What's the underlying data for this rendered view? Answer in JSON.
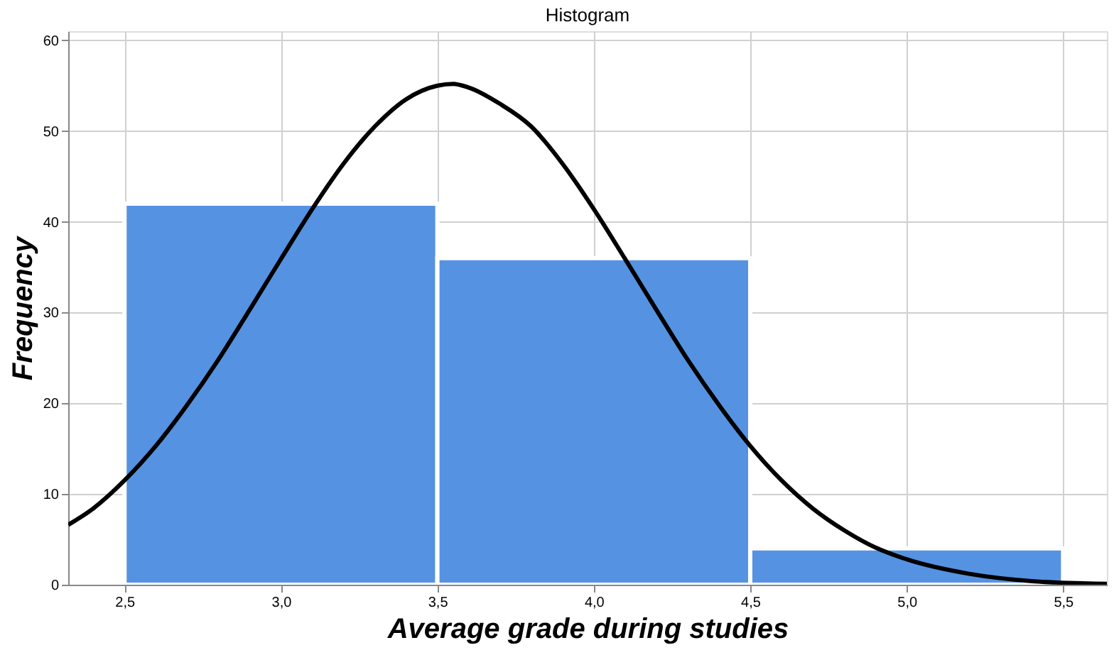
{
  "chart_data": {
    "type": "histogram",
    "title": "Histogram",
    "xlabel": "Average grade during studies",
    "ylabel": "Frequency",
    "bins": [
      2.5,
      3.5,
      4.5,
      5.5
    ],
    "values": [
      42,
      36,
      4
    ],
    "color": "#5592e2",
    "series": [
      {
        "type": "line",
        "color": "#000000",
        "x": [
          2.32,
          2.4,
          2.5,
          2.6,
          2.7,
          2.8,
          2.9,
          3.0,
          3.1,
          3.2,
          3.3,
          3.4,
          3.5,
          3.55,
          3.6,
          3.7,
          3.8,
          3.9,
          4.0,
          4.1,
          4.2,
          4.3,
          4.4,
          4.5,
          4.6,
          4.7,
          4.8,
          4.9,
          5.0,
          5.2,
          5.4,
          5.64
        ],
        "values": [
          6.6,
          8.4,
          11.5,
          15.3,
          19.8,
          24.8,
          30.3,
          35.9,
          41.4,
          46.4,
          50.5,
          53.5,
          55.0,
          55.2,
          54.8,
          53.0,
          50.5,
          46.4,
          41.4,
          35.9,
          30.3,
          24.8,
          19.8,
          15.3,
          11.5,
          8.4,
          6.0,
          4.1,
          2.8,
          1.2,
          0.4,
          0.1
        ]
      }
    ],
    "xlim": [
      2.32,
      5.64
    ],
    "ylim": [
      0,
      61
    ],
    "xticks": [
      {
        "value": 2.5,
        "label": "2,5"
      },
      {
        "value": 3.0,
        "label": "3,0"
      },
      {
        "value": 3.5,
        "label": "3,5"
      },
      {
        "value": 4.0,
        "label": "4,0"
      },
      {
        "value": 4.5,
        "label": "4,5"
      },
      {
        "value": 5.0,
        "label": "5,0"
      },
      {
        "value": 5.5,
        "label": "5,5"
      }
    ],
    "yticks": [
      0,
      10,
      20,
      30,
      40,
      50,
      60
    ],
    "grid": true
  }
}
